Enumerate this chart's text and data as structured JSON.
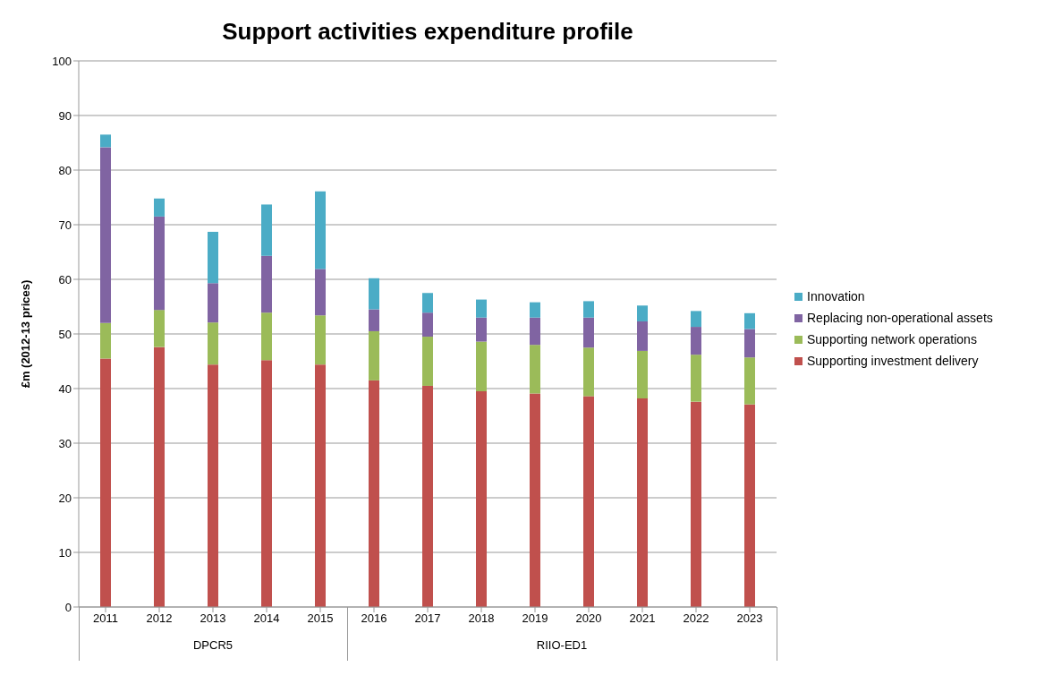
{
  "chart_data": {
    "type": "bar",
    "title": "Support activities expenditure profile",
    "ylabel": "£m (2012-13 prices)",
    "categories": [
      "2011",
      "2012",
      "2013",
      "2014",
      "2015",
      "2016",
      "2017",
      "2018",
      "2019",
      "2020",
      "2021",
      "2022",
      "2023"
    ],
    "series": [
      {
        "name": "Supporting investment delivery",
        "color": "#c0504d",
        "values": [
          45.5,
          47.6,
          44.4,
          45.2,
          44.4,
          41.5,
          40.5,
          39.5,
          39.1,
          38.6,
          38.2,
          37.6,
          37.1
        ]
      },
      {
        "name": "Supporting network operations",
        "color": "#9bbb59",
        "values": [
          6.5,
          6.8,
          7.7,
          8.7,
          9.0,
          9.0,
          9.0,
          9.1,
          8.9,
          8.9,
          8.7,
          8.6,
          8.6
        ]
      },
      {
        "name": "Replacing non-operational assets",
        "color": "#8064a2",
        "values": [
          32.2,
          17.1,
          7.2,
          10.4,
          8.5,
          4.0,
          4.4,
          4.4,
          5.0,
          5.5,
          5.4,
          5.1,
          5.2
        ]
      },
      {
        "name": "Innovation",
        "color": "#4bacc6",
        "values": [
          2.3,
          3.3,
          9.4,
          9.4,
          14.2,
          5.7,
          3.6,
          3.3,
          2.8,
          3.0,
          2.9,
          2.9,
          2.9
        ]
      }
    ],
    "stacked": true,
    "ylim": [
      0,
      100
    ],
    "yticks": [
      0,
      10,
      20,
      30,
      40,
      50,
      60,
      70,
      80,
      90,
      100
    ],
    "grid": "y",
    "legend": "right",
    "annotations": [
      "DPCR5",
      "RIIO-ED1"
    ]
  }
}
